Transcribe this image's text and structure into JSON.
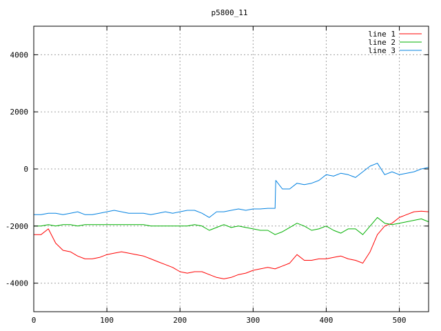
{
  "chart_data": {
    "type": "line",
    "title": "p5800_11",
    "xlabel": "",
    "ylabel": "",
    "xlim": [
      0,
      540
    ],
    "ylim": [
      -5000,
      5000
    ],
    "x_ticks": [
      0,
      100,
      200,
      300,
      400,
      500
    ],
    "y_ticks": [
      -4000,
      -2000,
      0,
      2000,
      4000
    ],
    "grid": true,
    "legend_position": "top-right",
    "series": [
      {
        "name": "line 1",
        "color": "#ff0000",
        "x": [
          0,
          10,
          20,
          30,
          40,
          50,
          60,
          70,
          80,
          90,
          100,
          110,
          120,
          130,
          140,
          150,
          160,
          170,
          180,
          190,
          200,
          210,
          220,
          230,
          240,
          250,
          260,
          270,
          280,
          290,
          300,
          310,
          320,
          330,
          340,
          350,
          360,
          370,
          380,
          390,
          400,
          410,
          420,
          430,
          440,
          450,
          460,
          470,
          480,
          490,
          500,
          510,
          520,
          530,
          540
        ],
        "values": [
          -2300,
          -2300,
          -2100,
          -2600,
          -2850,
          -2900,
          -3050,
          -3150,
          -3150,
          -3100,
          -3000,
          -2950,
          -2900,
          -2950,
          -3000,
          -3050,
          -3150,
          -3250,
          -3350,
          -3450,
          -3600,
          -3650,
          -3600,
          -3600,
          -3700,
          -3800,
          -3850,
          -3800,
          -3700,
          -3650,
          -3550,
          -3500,
          -3450,
          -3500,
          -3400,
          -3300,
          -3000,
          -3200,
          -3200,
          -3150,
          -3150,
          -3100,
          -3050,
          -3150,
          -3200,
          -3300,
          -2900,
          -2300,
          -2000,
          -1900,
          -1700,
          -1600,
          -1500,
          -1480,
          -1500
        ]
      },
      {
        "name": "line 2",
        "color": "#00b000",
        "x": [
          0,
          10,
          20,
          30,
          40,
          50,
          60,
          70,
          80,
          90,
          100,
          110,
          120,
          130,
          140,
          150,
          160,
          170,
          180,
          190,
          200,
          210,
          220,
          230,
          240,
          250,
          260,
          270,
          280,
          290,
          300,
          310,
          320,
          330,
          340,
          350,
          360,
          370,
          380,
          390,
          400,
          410,
          420,
          430,
          440,
          450,
          460,
          470,
          480,
          490,
          500,
          510,
          520,
          530,
          540
        ],
        "values": [
          -2000,
          -2000,
          -1950,
          -2000,
          -1950,
          -1950,
          -2000,
          -1950,
          -1950,
          -1950,
          -1950,
          -1950,
          -1950,
          -1950,
          -1950,
          -1950,
          -2000,
          -2000,
          -2000,
          -2000,
          -2000,
          -2000,
          -1950,
          -2000,
          -2150,
          -2050,
          -1950,
          -2050,
          -2000,
          -2050,
          -2100,
          -2150,
          -2150,
          -2300,
          -2200,
          -2050,
          -1900,
          -2000,
          -2150,
          -2100,
          -2000,
          -2150,
          -2250,
          -2100,
          -2100,
          -2300,
          -2000,
          -1700,
          -1900,
          -1950,
          -1900,
          -1850,
          -1800,
          -1750,
          -1850
        ]
      },
      {
        "name": "line 3",
        "color": "#0080e0",
        "x": [
          0,
          10,
          20,
          30,
          40,
          50,
          60,
          70,
          80,
          90,
          100,
          110,
          120,
          130,
          140,
          150,
          160,
          170,
          180,
          190,
          200,
          210,
          220,
          230,
          240,
          250,
          260,
          270,
          280,
          290,
          300,
          310,
          320,
          330,
          331,
          340,
          350,
          360,
          370,
          380,
          390,
          400,
          410,
          420,
          430,
          440,
          450,
          460,
          470,
          480,
          490,
          500,
          510,
          520,
          530,
          540
        ],
        "values": [
          -1600,
          -1600,
          -1550,
          -1550,
          -1600,
          -1550,
          -1500,
          -1600,
          -1600,
          -1550,
          -1500,
          -1450,
          -1500,
          -1550,
          -1550,
          -1550,
          -1600,
          -1550,
          -1500,
          -1550,
          -1500,
          -1450,
          -1450,
          -1550,
          -1700,
          -1500,
          -1500,
          -1450,
          -1400,
          -1450,
          -1400,
          -1400,
          -1380,
          -1380,
          -400,
          -700,
          -700,
          -500,
          -550,
          -500,
          -400,
          -200,
          -250,
          -150,
          -200,
          -300,
          -100,
          100,
          200,
          -200,
          -100,
          -200,
          -150,
          -100,
          0,
          50
        ]
      }
    ]
  }
}
